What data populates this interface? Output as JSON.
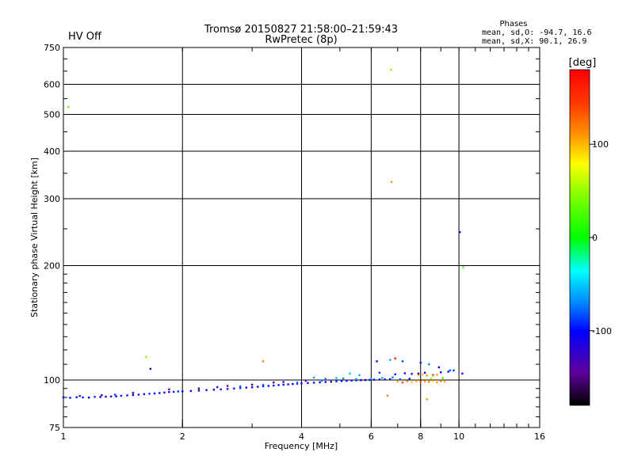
{
  "header": {
    "title_line1": "Tromsø 20150827 21:58:00–21:59:43",
    "title_line2": "RwPretec (8p)",
    "status": "HV Off",
    "status_color": "#cc0000"
  },
  "stats": {
    "title": "Phases",
    "line1": "mean, sd,O: -94.7, 16.6",
    "line2": "mean, sd,X:  90.1, 26.9"
  },
  "colorbar": {
    "unit_label": "[deg]",
    "range": [
      -180,
      180
    ],
    "ticks": [
      {
        "value": 100,
        "label": "100"
      },
      {
        "value": 0,
        "label": "0"
      },
      {
        "value": -100,
        "label": "-100"
      }
    ]
  },
  "chart_data": {
    "type": "scatter",
    "xlabel": "Frequency [MHz]",
    "ylabel": "Stationary phase Virtual Height [km]",
    "xscale": "log",
    "yscale": "log",
    "xlim": [
      1,
      16
    ],
    "ylim": [
      75,
      750
    ],
    "x_ticks": [
      {
        "value": 1,
        "label": "1"
      },
      {
        "value": 2,
        "label": "2"
      },
      {
        "value": 4,
        "label": "4"
      },
      {
        "value": 6,
        "label": "6"
      },
      {
        "value": 8,
        "label": "8"
      },
      {
        "value": 10,
        "label": "10"
      },
      {
        "value": 16,
        "label": "16"
      }
    ],
    "y_ticks": [
      {
        "value": 75,
        "label": "75"
      },
      {
        "value": 100,
        "label": "100"
      },
      {
        "value": 200,
        "label": "200"
      },
      {
        "value": 300,
        "label": "300"
      },
      {
        "value": 400,
        "label": "400"
      },
      {
        "value": 500,
        "label": "500"
      },
      {
        "value": 600,
        "label": "600"
      },
      {
        "value": 750,
        "label": "750"
      }
    ],
    "grid_x": [
      2,
      4,
      6,
      8,
      10
    ],
    "grid_y": [
      100,
      200,
      300,
      400,
      500,
      600
    ],
    "points": [
      [
        1.03,
        523,
        30
      ],
      [
        1.62,
        115,
        40
      ],
      [
        1.66,
        107,
        -110
      ],
      [
        3.2,
        112,
        120
      ],
      [
        6.73,
        655,
        45
      ],
      [
        6.75,
        332,
        110
      ],
      [
        6.9,
        114,
        160
      ],
      [
        7.9,
        103,
        100
      ],
      [
        10.05,
        245,
        -115
      ],
      [
        10.25,
        198,
        30
      ],
      [
        6.6,
        91,
        120
      ],
      [
        8.3,
        89,
        110
      ],
      [
        6.2,
        112,
        -100
      ],
      [
        6.7,
        113,
        -60
      ],
      [
        7.2,
        112,
        -85
      ],
      [
        8.0,
        111,
        -95
      ],
      [
        8.4,
        110,
        -70
      ],
      [
        8.9,
        108,
        -100
      ],
      [
        9.5,
        106,
        -80
      ],
      [
        10.2,
        104,
        -110
      ],
      [
        1.0,
        90,
        -100
      ],
      [
        1.04,
        89.8,
        -105
      ],
      [
        1.08,
        90.1,
        -95
      ],
      [
        1.12,
        90,
        -110
      ],
      [
        1.16,
        89.9,
        -100
      ],
      [
        1.2,
        90.3,
        -90
      ],
      [
        1.24,
        90.2,
        -105
      ],
      [
        1.28,
        90.4,
        -100
      ],
      [
        1.32,
        90.5,
        -115
      ],
      [
        1.36,
        90.6,
        -100
      ],
      [
        1.4,
        90.9,
        -95
      ],
      [
        1.45,
        91.1,
        -100
      ],
      [
        1.5,
        91.3,
        -110
      ],
      [
        1.55,
        91.5,
        -98
      ],
      [
        1.6,
        91.8,
        -100
      ],
      [
        1.65,
        92.0,
        -90
      ],
      [
        1.7,
        92.2,
        -105
      ],
      [
        1.75,
        92.4,
        -100
      ],
      [
        1.8,
        92.7,
        -95
      ],
      [
        1.85,
        93.0,
        -110
      ],
      [
        1.9,
        93.1,
        -100
      ],
      [
        1.95,
        93.3,
        -92
      ],
      [
        2.0,
        93.4,
        -100
      ],
      [
        2.1,
        93.6,
        -105
      ],
      [
        2.2,
        93.8,
        -98
      ],
      [
        2.3,
        94.1,
        -110
      ],
      [
        2.4,
        94.3,
        -100
      ],
      [
        2.5,
        94.5,
        -95
      ],
      [
        2.6,
        94.7,
        -100
      ],
      [
        2.7,
        95.0,
        -105
      ],
      [
        2.8,
        95.2,
        -90
      ],
      [
        2.9,
        95.5,
        -100
      ],
      [
        3.0,
        95.7,
        -110
      ],
      [
        3.1,
        96.0,
        -100
      ],
      [
        3.2,
        96.3,
        -95
      ],
      [
        3.3,
        96.5,
        -100
      ],
      [
        3.4,
        96.7,
        -105
      ],
      [
        3.5,
        97.0,
        -98
      ],
      [
        3.6,
        97.2,
        -100
      ],
      [
        3.7,
        97.4,
        -110
      ],
      [
        3.8,
        97.6,
        -100
      ],
      [
        3.9,
        97.8,
        -92
      ],
      [
        4.0,
        98.0,
        -100
      ],
      [
        4.15,
        98.2,
        -105
      ],
      [
        4.3,
        98.4,
        -95
      ],
      [
        4.45,
        98.6,
        -100
      ],
      [
        4.6,
        98.8,
        -110
      ],
      [
        4.75,
        99.0,
        -100
      ],
      [
        4.9,
        99.2,
        -90
      ],
      [
        5.05,
        99.4,
        -100
      ],
      [
        5.2,
        99.5,
        -105
      ],
      [
        5.35,
        99.7,
        -100
      ],
      [
        5.5,
        99.8,
        -95
      ],
      [
        5.65,
        99.9,
        -110
      ],
      [
        5.8,
        100.0,
        -100
      ],
      [
        5.95,
        100.1,
        -98
      ],
      [
        6.1,
        100.2,
        -100
      ],
      [
        6.3,
        100.3,
        -105
      ],
      [
        6.5,
        100.4,
        -95
      ],
      [
        6.7,
        100.5,
        -100
      ],
      [
        4.6,
        100.8,
        -65
      ],
      [
        4.9,
        101.2,
        -55
      ],
      [
        5.1,
        101.0,
        -70
      ],
      [
        4.3,
        101.5,
        -60
      ],
      [
        5.3,
        104,
        -50
      ],
      [
        5.6,
        103,
        -60
      ],
      [
        6.3,
        104.5,
        -90
      ],
      [
        6.9,
        103.5,
        -100
      ],
      [
        7.3,
        104.2,
        -110
      ],
      [
        7.6,
        103.8,
        -95
      ],
      [
        7.9,
        104.0,
        -100
      ],
      [
        8.2,
        104.5,
        -105
      ],
      [
        8.6,
        103.0,
        -95
      ],
      [
        9.0,
        104.8,
        -110
      ],
      [
        9.4,
        105.2,
        -100
      ],
      [
        9.7,
        106.0,
        -90
      ],
      [
        7.0,
        99.0,
        100
      ],
      [
        7.2,
        98.5,
        140
      ],
      [
        7.4,
        99.2,
        110
      ],
      [
        7.6,
        98.8,
        95
      ],
      [
        7.8,
        99.5,
        120
      ],
      [
        8.0,
        98.7,
        130
      ],
      [
        8.2,
        99.1,
        100
      ],
      [
        8.4,
        98.9,
        115
      ],
      [
        8.6,
        99.3,
        90
      ],
      [
        8.8,
        98.6,
        105
      ],
      [
        9.0,
        99.4,
        125
      ],
      [
        9.2,
        99.0,
        100
      ],
      [
        8.1,
        103.5,
        100
      ],
      [
        8.3,
        102.8,
        110
      ],
      [
        8.6,
        102.5,
        95
      ],
      [
        8.8,
        103.2,
        110
      ],
      [
        7.1,
        100.5,
        -80
      ],
      [
        7.5,
        100.8,
        -90
      ],
      [
        8.5,
        101.0,
        60
      ],
      [
        9.1,
        101.2,
        20
      ],
      [
        2.2,
        95.0,
        -150
      ],
      [
        2.6,
        96.5,
        -150
      ],
      [
        3.0,
        97.2,
        -150
      ],
      [
        3.4,
        98.5,
        -150
      ],
      [
        1.85,
        94.5,
        -140
      ],
      [
        2.45,
        95.8,
        -120
      ],
      [
        3.6,
        98.8,
        -125
      ],
      [
        4.1,
        99.5,
        -130
      ],
      [
        1.5,
        92.5,
        -120
      ],
      [
        1.25,
        91.2,
        -115
      ],
      [
        1.1,
        90.8,
        -95
      ],
      [
        1.35,
        91.5,
        -85
      ],
      [
        2.8,
        96.2,
        -80
      ],
      [
        3.2,
        97.0,
        -85
      ],
      [
        3.9,
        98.4,
        -80
      ],
      [
        4.5,
        99.6,
        -75
      ],
      [
        5.5,
        100.6,
        -65
      ],
      [
        6.0,
        100.9,
        -55
      ],
      [
        6.4,
        101.3,
        -60
      ],
      [
        6.8,
        101.6,
        -70
      ]
    ]
  }
}
